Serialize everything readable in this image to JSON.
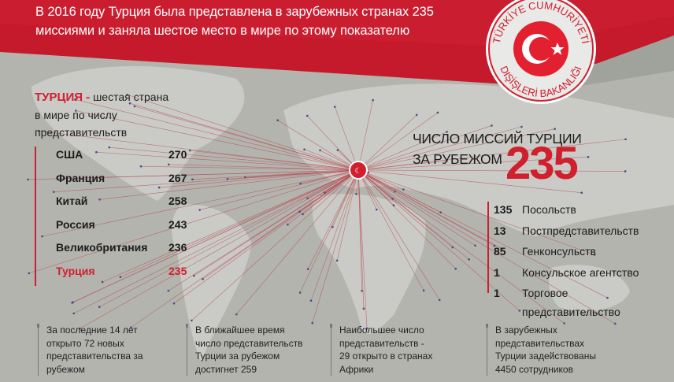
{
  "header": {
    "title_line1": "В 2016 году Турция была представлена в зарубежных странах 235",
    "title_line2": "миссиями и заняла шестое место в мире по этому показателю"
  },
  "seal": {
    "text_top": "TÜRKİYE CUMHURİYETİ",
    "text_bottom": "DIŞİŞLERİ BAKANLIĞI",
    "icon": "turkish-flag-crescent-star"
  },
  "lead": {
    "highlight": "ТУРЦИЯ -",
    "line1": " шестая страна",
    "line2": "в мире по числу",
    "line3": "представительств"
  },
  "ranking": [
    {
      "country": "США",
      "value": "270"
    },
    {
      "country": "Франция",
      "value": "267"
    },
    {
      "country": "Китай",
      "value": "258"
    },
    {
      "country": "Россия",
      "value": "243"
    },
    {
      "country": "Великобритания",
      "value": "236"
    },
    {
      "country": "Турция",
      "value": "235"
    }
  ],
  "total": {
    "label_line1": "ЧИСЛО МИССИЙ ТУРЦИИ",
    "label_line2": "ЗА РУБЕЖОМ",
    "value": "235"
  },
  "mission_types": [
    {
      "count": "135",
      "label": "Посольств"
    },
    {
      "count": "13",
      "label": "Постпредставительств"
    },
    {
      "count": "85",
      "label": "Генконсульств"
    },
    {
      "count": "1",
      "label": "Консульское агентство"
    },
    {
      "count": "1",
      "label": "Торговое"
    }
  ],
  "mission_types_cont": "представительство",
  "notes": [
    [
      "За последние 14 лет",
      "открыто 72 новых",
      "представительства за",
      "рубежом"
    ],
    [
      "В ближайшее время",
      "число представительств",
      "Турции за рубежом",
      "достигнет 259"
    ],
    [
      "Наибольшее число",
      "представительств -",
      "29 открыто в странах",
      "Африки"
    ],
    [
      "В зарубежных",
      "представительствах",
      "Турции задействованы",
      "4450 сотрудников"
    ]
  ],
  "colors": {
    "accent": "#d0202e",
    "background": "#b3b4ae",
    "header": "#c41a2b"
  }
}
